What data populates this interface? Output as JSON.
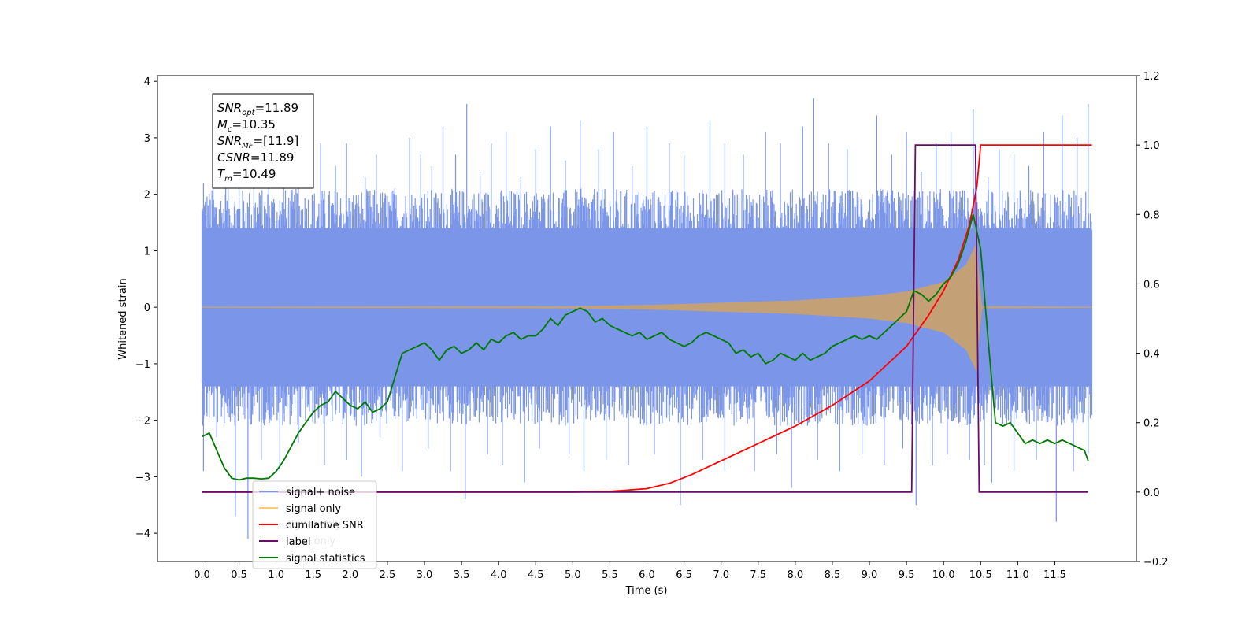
{
  "chart_data": {
    "type": "line",
    "xlabel": "Time (s)",
    "ylabel": "Whitened strain",
    "xlim": [
      -0.6,
      12.6
    ],
    "ylim_left": [
      -4.5,
      4.1
    ],
    "ylim_right": [
      -0.2,
      1.2
    ],
    "x_ticks": [
      "0.0",
      "0.5",
      "1.0",
      "1.5",
      "2.0",
      "2.5",
      "3.0",
      "3.5",
      "4.0",
      "4.5",
      "5.0",
      "5.5",
      "6.0",
      "6.5",
      "7.0",
      "7.5",
      "8.0",
      "8.5",
      "9.0",
      "9.5",
      "10.0",
      "10.5",
      "11.0",
      "11.5"
    ],
    "y_ticks_left": [
      "4",
      "3",
      "2",
      "1",
      "0",
      "−1",
      "−2",
      "−3",
      "−4"
    ],
    "y_ticks_right": [
      "1.2",
      "1.0",
      "0.8",
      "0.6",
      "0.4",
      "0.2",
      "0.0",
      "−0.2"
    ],
    "info_box": [
      {
        "base": "SNR",
        "sub": "opt",
        "value": "=11.89"
      },
      {
        "base": "M",
        "sub": "c",
        "value": "=10.35"
      },
      {
        "base": "SNR",
        "sub": "MF",
        "value": "=[11.9]"
      },
      {
        "base": "CSNR",
        "sub": "",
        "value": "=11.89"
      },
      {
        "base": "T",
        "sub": "m",
        "value": "=10.49"
      }
    ],
    "legend": {
      "placement": "lower-left",
      "entries": [
        {
          "label": "signal+ noise",
          "color": "#7b96e8"
        },
        {
          "label": "signal only",
          "color": "#ffc978"
        },
        {
          "label": "cumilative SNR",
          "color": "#ff0000"
        },
        {
          "label": "label",
          "color": "#6a0d6a"
        },
        {
          "label": "signal statistics",
          "color": "#007a00"
        }
      ],
      "obscured_labels": [
        "signal only",
        "label only"
      ]
    },
    "series": [
      {
        "name": "signal+ noise",
        "axis": "left",
        "color": "#7b96e8",
        "kind": "noise",
        "x_range": [
          0.0,
          12.0
        ],
        "typical_band": [
          -1.4,
          1.4
        ],
        "peaks_up": [
          [
            0.02,
            2.2
          ],
          [
            0.15,
            2.2
          ],
          [
            0.32,
            2.5
          ],
          [
            0.5,
            2.6
          ],
          [
            0.7,
            2.4
          ],
          [
            0.9,
            2.8
          ],
          [
            1.1,
            2.6
          ],
          [
            1.3,
            2.4
          ],
          [
            1.6,
            2.9
          ],
          [
            1.8,
            2.5
          ],
          [
            1.95,
            2.9
          ],
          [
            2.2,
            2.3
          ],
          [
            2.35,
            2.7
          ],
          [
            2.6,
            2.1
          ],
          [
            2.8,
            3.0
          ],
          [
            2.95,
            2.7
          ],
          [
            3.1,
            2.5
          ],
          [
            3.25,
            3.2
          ],
          [
            3.42,
            2.7
          ],
          [
            3.57,
            3.6
          ],
          [
            3.75,
            2.4
          ],
          [
            3.9,
            2.9
          ],
          [
            4.1,
            3.1
          ],
          [
            4.3,
            2.3
          ],
          [
            4.5,
            2.8
          ],
          [
            4.7,
            3.2
          ],
          [
            4.9,
            2.6
          ],
          [
            5.1,
            3.3
          ],
          [
            5.35,
            2.8
          ],
          [
            5.55,
            3.1
          ],
          [
            5.8,
            2.5
          ],
          [
            6.0,
            3.2
          ],
          [
            6.3,
            2.9
          ],
          [
            6.5,
            2.7
          ],
          [
            6.85,
            3.3
          ],
          [
            7.05,
            2.9
          ],
          [
            7.3,
            2.7
          ],
          [
            7.6,
            3.1
          ],
          [
            7.8,
            2.9
          ],
          [
            8.1,
            3.2
          ],
          [
            8.25,
            3.7
          ],
          [
            8.45,
            2.9
          ],
          [
            8.7,
            2.8
          ],
          [
            9.1,
            3.4
          ],
          [
            9.3,
            2.7
          ],
          [
            9.5,
            3.1
          ],
          [
            9.7,
            2.4
          ],
          [
            9.9,
            2.9
          ],
          [
            10.1,
            3.1
          ],
          [
            10.4,
            3.5
          ],
          [
            10.6,
            2.3
          ],
          [
            10.75,
            2.8
          ],
          [
            10.95,
            2.7
          ],
          [
            11.15,
            2.5
          ],
          [
            11.35,
            3.1
          ],
          [
            11.6,
            3.4
          ],
          [
            11.8,
            3.0
          ],
          [
            11.95,
            3.6
          ]
        ],
        "peaks_down": [
          [
            0.02,
            -2.9
          ],
          [
            0.2,
            -2.3
          ],
          [
            0.45,
            -3.7
          ],
          [
            0.62,
            -4.1
          ],
          [
            0.8,
            -2.7
          ],
          [
            1.05,
            -2.9
          ],
          [
            1.3,
            -2.4
          ],
          [
            1.65,
            -2.8
          ],
          [
            1.95,
            -2.7
          ],
          [
            2.15,
            -3.0
          ],
          [
            2.4,
            -2.3
          ],
          [
            2.7,
            -2.9
          ],
          [
            3.05,
            -2.5
          ],
          [
            3.35,
            -2.9
          ],
          [
            3.55,
            -3.4
          ],
          [
            3.85,
            -2.6
          ],
          [
            4.05,
            -2.8
          ],
          [
            4.35,
            -3.1
          ],
          [
            4.55,
            -2.5
          ],
          [
            4.95,
            -2.6
          ],
          [
            5.15,
            -2.9
          ],
          [
            5.45,
            -2.7
          ],
          [
            5.75,
            -2.8
          ],
          [
            6.1,
            -2.6
          ],
          [
            6.45,
            -3.5
          ],
          [
            6.75,
            -2.7
          ],
          [
            7.05,
            -2.9
          ],
          [
            7.45,
            -2.9
          ],
          [
            7.75,
            -2.6
          ],
          [
            7.95,
            -3.2
          ],
          [
            8.3,
            -2.7
          ],
          [
            8.6,
            -2.9
          ],
          [
            8.9,
            -2.6
          ],
          [
            9.2,
            -2.8
          ],
          [
            9.45,
            -2.5
          ],
          [
            9.63,
            -3.5
          ],
          [
            9.85,
            -2.8
          ],
          [
            10.05,
            -2.6
          ],
          [
            10.35,
            -2.7
          ],
          [
            10.55,
            -2.8
          ],
          [
            10.65,
            -3.1
          ],
          [
            10.95,
            -2.9
          ],
          [
            11.25,
            -2.7
          ],
          [
            11.52,
            -3.8
          ],
          [
            11.75,
            -2.9
          ],
          [
            11.95,
            -2.6
          ]
        ]
      },
      {
        "name": "signal only",
        "axis": "left",
        "color": "#c8a070",
        "kind": "chirp",
        "envelope": [
          [
            0.0,
            0.01
          ],
          [
            5.0,
            0.02
          ],
          [
            6.0,
            0.04
          ],
          [
            7.0,
            0.08
          ],
          [
            8.0,
            0.12
          ],
          [
            9.0,
            0.2
          ],
          [
            9.5,
            0.28
          ],
          [
            10.0,
            0.45
          ],
          [
            10.3,
            0.75
          ],
          [
            10.45,
            1.15
          ],
          [
            10.49,
            0.4
          ],
          [
            10.52,
            0.02
          ],
          [
            12.0,
            0.01
          ]
        ]
      },
      {
        "name": "cumilative SNR",
        "axis": "right",
        "x": [
          0.0,
          5.0,
          5.5,
          6.0,
          6.3,
          6.6,
          7.0,
          7.5,
          8.0,
          8.5,
          9.0,
          9.5,
          9.8,
          10.0,
          10.2,
          10.35,
          10.45,
          10.5,
          12.0
        ],
        "y": [
          0.0,
          0.0,
          0.002,
          0.01,
          0.025,
          0.05,
          0.09,
          0.14,
          0.19,
          0.25,
          0.32,
          0.42,
          0.51,
          0.58,
          0.67,
          0.77,
          0.88,
          1.0,
          1.0
        ]
      },
      {
        "name": "label",
        "axis": "right",
        "x": [
          0.0,
          9.57,
          9.62,
          10.43,
          10.48,
          11.95
        ],
        "y": [
          0.0,
          0.0,
          1.0,
          1.0,
          0.0,
          0.0
        ]
      },
      {
        "name": "signal statistics",
        "axis": "right",
        "x": [
          0.0,
          0.1,
          0.2,
          0.3,
          0.4,
          0.5,
          0.6,
          0.7,
          0.8,
          0.9,
          1.0,
          1.1,
          1.2,
          1.3,
          1.4,
          1.5,
          1.6,
          1.7,
          1.8,
          1.9,
          2.0,
          2.1,
          2.2,
          2.3,
          2.4,
          2.5,
          2.6,
          2.7,
          2.8,
          2.9,
          3.0,
          3.1,
          3.2,
          3.3,
          3.4,
          3.5,
          3.6,
          3.7,
          3.8,
          3.9,
          4.0,
          4.1,
          4.2,
          4.3,
          4.4,
          4.5,
          4.6,
          4.7,
          4.8,
          4.9,
          5.0,
          5.1,
          5.2,
          5.3,
          5.4,
          5.5,
          5.6,
          5.7,
          5.8,
          5.9,
          6.0,
          6.1,
          6.2,
          6.3,
          6.4,
          6.5,
          6.6,
          6.7,
          6.8,
          6.9,
          7.0,
          7.1,
          7.2,
          7.3,
          7.4,
          7.5,
          7.6,
          7.7,
          7.8,
          7.9,
          8.0,
          8.1,
          8.2,
          8.3,
          8.4,
          8.5,
          8.6,
          8.7,
          8.8,
          8.9,
          9.0,
          9.1,
          9.2,
          9.3,
          9.4,
          9.5,
          9.6,
          9.7,
          9.8,
          9.9,
          10.0,
          10.1,
          10.2,
          10.3,
          10.4,
          10.5,
          10.6,
          10.7,
          10.8,
          10.9,
          11.0,
          11.1,
          11.2,
          11.3,
          11.4,
          11.5,
          11.6,
          11.7,
          11.8,
          11.9,
          11.95
        ],
        "y": [
          0.16,
          0.17,
          0.12,
          0.07,
          0.04,
          0.035,
          0.04,
          0.04,
          0.038,
          0.04,
          0.06,
          0.09,
          0.13,
          0.17,
          0.2,
          0.23,
          0.25,
          0.26,
          0.29,
          0.27,
          0.25,
          0.24,
          0.26,
          0.23,
          0.24,
          0.26,
          0.33,
          0.4,
          0.41,
          0.42,
          0.43,
          0.41,
          0.38,
          0.41,
          0.42,
          0.4,
          0.41,
          0.43,
          0.41,
          0.44,
          0.43,
          0.45,
          0.46,
          0.44,
          0.45,
          0.45,
          0.47,
          0.5,
          0.48,
          0.51,
          0.52,
          0.53,
          0.52,
          0.49,
          0.5,
          0.48,
          0.47,
          0.46,
          0.45,
          0.46,
          0.44,
          0.45,
          0.46,
          0.44,
          0.43,
          0.42,
          0.43,
          0.45,
          0.46,
          0.45,
          0.44,
          0.43,
          0.4,
          0.41,
          0.39,
          0.4,
          0.37,
          0.38,
          0.4,
          0.39,
          0.38,
          0.4,
          0.38,
          0.39,
          0.4,
          0.42,
          0.43,
          0.44,
          0.45,
          0.44,
          0.45,
          0.44,
          0.46,
          0.48,
          0.5,
          0.52,
          0.58,
          0.57,
          0.55,
          0.57,
          0.6,
          0.62,
          0.66,
          0.72,
          0.8,
          0.7,
          0.44,
          0.2,
          0.19,
          0.2,
          0.17,
          0.14,
          0.15,
          0.14,
          0.15,
          0.14,
          0.15,
          0.14,
          0.13,
          0.12,
          0.09
        ]
      }
    ]
  }
}
